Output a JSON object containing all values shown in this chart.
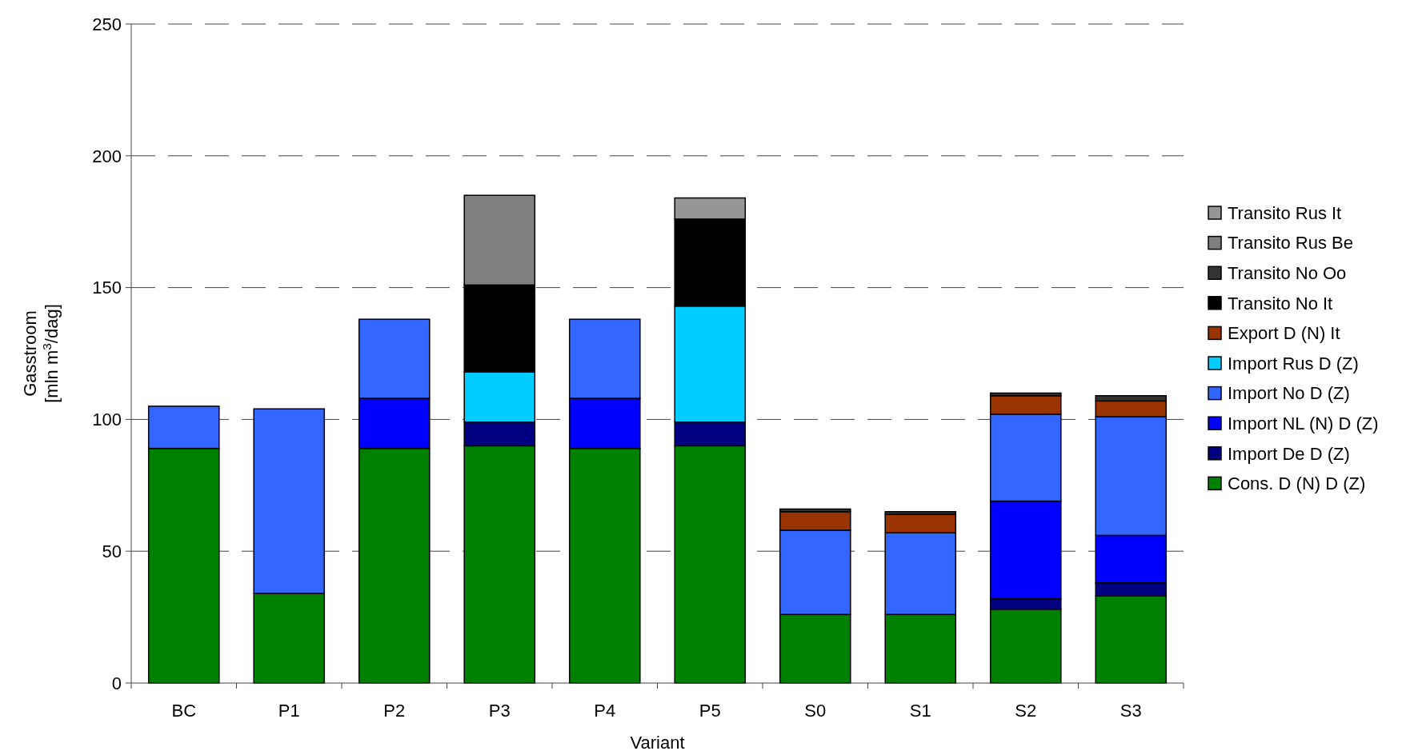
{
  "chart_data": {
    "type": "bar",
    "stacked": true,
    "xlabel": "Variant",
    "ylabel": "Gasstroom\n[mln m$^{3}$/dag]",
    "categories": [
      "BC",
      "P1",
      "P2",
      "P3",
      "P4",
      "P5",
      "S0",
      "S1",
      "S2",
      "S3"
    ],
    "ylim": [
      0,
      250
    ],
    "yticks": [
      0,
      50,
      100,
      150,
      200,
      250
    ],
    "grid": "y",
    "legend": "right",
    "series": [
      {
        "name": "Cons. D (N) D (Z)",
        "color": "#008000",
        "values": [
          89,
          34,
          89,
          90,
          89,
          90,
          26,
          26,
          28,
          33
        ]
      },
      {
        "name": "Import De D (Z)",
        "color": "#000080",
        "values": [
          null,
          null,
          null,
          9,
          null,
          9,
          null,
          null,
          4,
          5
        ]
      },
      {
        "name": "Import NL (N) D (Z)",
        "color": "#0000ff",
        "values": [
          null,
          null,
          19,
          null,
          19,
          null,
          null,
          null,
          37,
          18
        ]
      },
      {
        "name": "Import No D (Z)",
        "color": "#3366ff",
        "values": [
          16,
          70,
          30,
          null,
          30,
          null,
          32,
          31,
          33,
          45
        ]
      },
      {
        "name": "Import Rus D (Z)",
        "color": "#00ccff",
        "values": [
          null,
          null,
          null,
          19,
          null,
          44,
          null,
          null,
          null,
          null
        ]
      },
      {
        "name": "Export D (N) It",
        "color": "#993300",
        "values": [
          null,
          null,
          null,
          null,
          null,
          null,
          7,
          7,
          7,
          6
        ]
      },
      {
        "name": "Transito No It",
        "color": "#000000",
        "values": [
          null,
          null,
          null,
          33,
          null,
          33,
          null,
          null,
          null,
          null
        ]
      },
      {
        "name": "Transito No Oo",
        "color": "#333333",
        "values": [
          null,
          null,
          null,
          null,
          null,
          null,
          1,
          1,
          1,
          2
        ]
      },
      {
        "name": "Transito Rus Be",
        "color": "#808080",
        "values": [
          null,
          null,
          null,
          34,
          null,
          null,
          null,
          null,
          null,
          null
        ]
      },
      {
        "name": "Transito Rus It",
        "color": "#969696",
        "values": [
          null,
          null,
          null,
          null,
          null,
          8,
          null,
          null,
          null,
          null
        ]
      }
    ]
  }
}
